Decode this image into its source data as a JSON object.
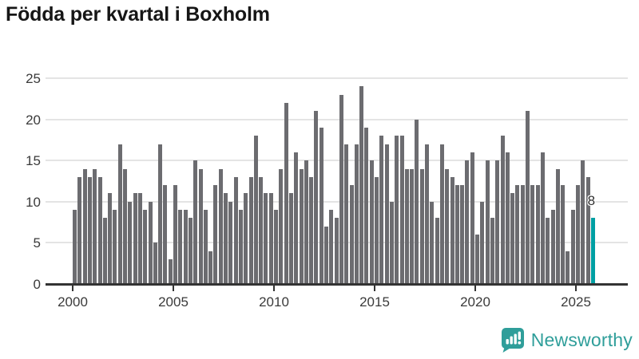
{
  "chart_data": {
    "type": "bar",
    "title": "Födda per kvartal i Boxholm",
    "frequency": "quarterly",
    "xlabel": "",
    "ylabel": "",
    "ylim": [
      0,
      25
    ],
    "yticks": [
      0,
      5,
      10,
      15,
      20,
      25
    ],
    "xticks": [
      2000,
      2005,
      2010,
      2015,
      2020,
      2025
    ],
    "grid": true,
    "legend": "none",
    "bar_color": "#6c6c70",
    "values_by_year": [
      {
        "year": 2000,
        "quarters": [
          9,
          13,
          14,
          13
        ]
      },
      {
        "year": 2001,
        "quarters": [
          14,
          13,
          8,
          11
        ]
      },
      {
        "year": 2002,
        "quarters": [
          9,
          17,
          14,
          10
        ]
      },
      {
        "year": 2003,
        "quarters": [
          11,
          11,
          9,
          10
        ]
      },
      {
        "year": 2004,
        "quarters": [
          5,
          17,
          12,
          3
        ]
      },
      {
        "year": 2005,
        "quarters": [
          12,
          9,
          9,
          8
        ]
      },
      {
        "year": 2006,
        "quarters": [
          15,
          14,
          9,
          4
        ]
      },
      {
        "year": 2007,
        "quarters": [
          12,
          14,
          11,
          10
        ]
      },
      {
        "year": 2008,
        "quarters": [
          13,
          9,
          11,
          13
        ]
      },
      {
        "year": 2009,
        "quarters": [
          18,
          13,
          11,
          11
        ]
      },
      {
        "year": 2010,
        "quarters": [
          9,
          14,
          22,
          11
        ]
      },
      {
        "year": 2011,
        "quarters": [
          16,
          14,
          15,
          13
        ]
      },
      {
        "year": 2012,
        "quarters": [
          21,
          19,
          7,
          9
        ]
      },
      {
        "year": 2013,
        "quarters": [
          8,
          23,
          17,
          12
        ]
      },
      {
        "year": 2014,
        "quarters": [
          17,
          24,
          19,
          15
        ]
      },
      {
        "year": 2015,
        "quarters": [
          13,
          18,
          17,
          10
        ]
      },
      {
        "year": 2016,
        "quarters": [
          18,
          18,
          14,
          14
        ]
      },
      {
        "year": 2017,
        "quarters": [
          20,
          14,
          17,
          10
        ]
      },
      {
        "year": 2018,
        "quarters": [
          8,
          17,
          14,
          13
        ]
      },
      {
        "year": 2019,
        "quarters": [
          12,
          12,
          15,
          16
        ]
      },
      {
        "year": 2020,
        "quarters": [
          6,
          10,
          15,
          8
        ]
      },
      {
        "year": 2021,
        "quarters": [
          15,
          18,
          16,
          11
        ]
      },
      {
        "year": 2022,
        "quarters": [
          12,
          12,
          21,
          12
        ]
      },
      {
        "year": 2023,
        "quarters": [
          12,
          16,
          8,
          9
        ]
      },
      {
        "year": 2024,
        "quarters": [
          14,
          12,
          4,
          9
        ]
      },
      {
        "year": 2025,
        "quarters": [
          12,
          15,
          13,
          8
        ]
      }
    ],
    "highlight": {
      "period": "2025 Q4",
      "value": 8,
      "data_label": "8",
      "color": "#009fa3"
    }
  },
  "branding": {
    "name": "Newsworthy",
    "color": "#2f9e9a"
  }
}
